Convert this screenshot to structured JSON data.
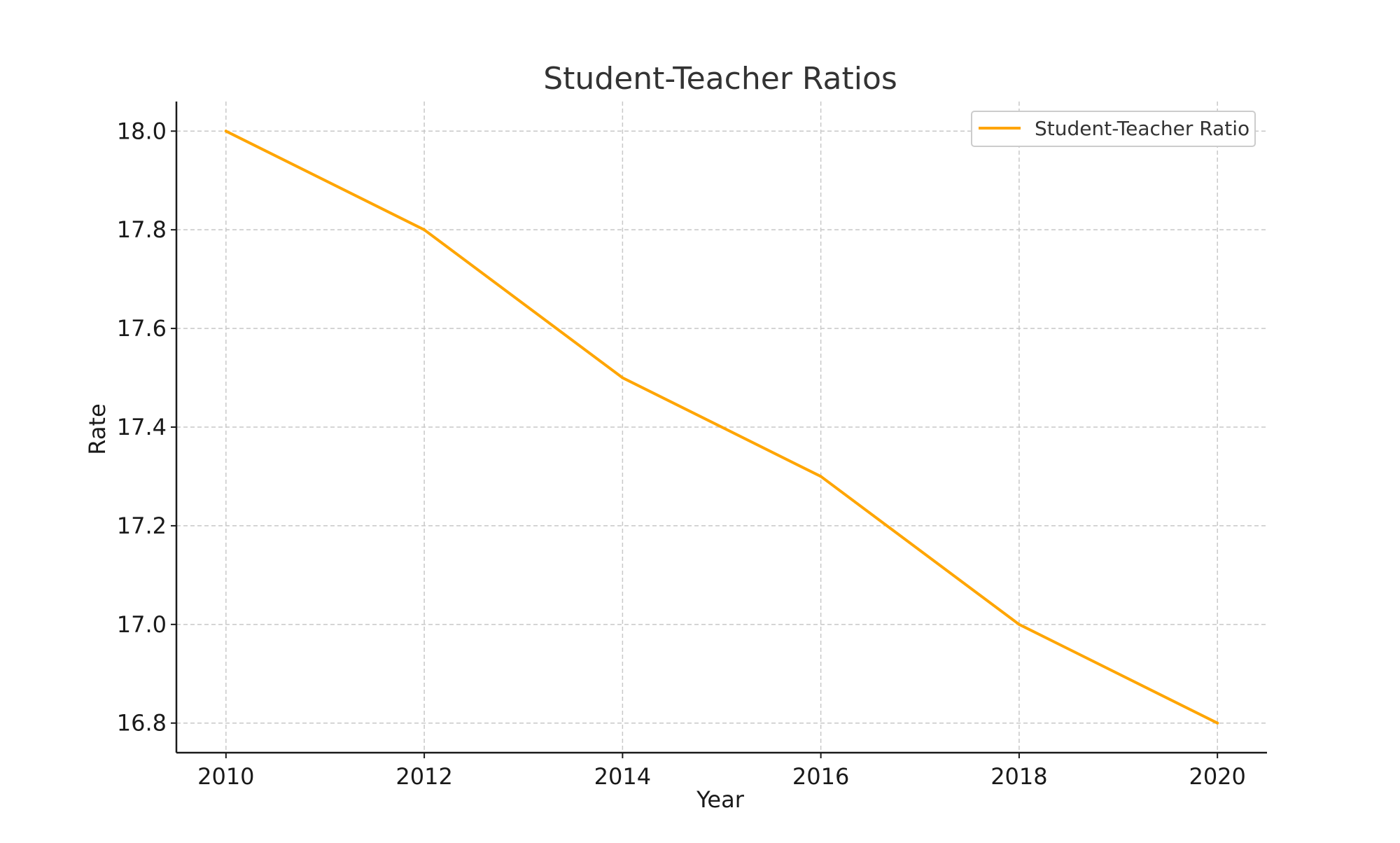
{
  "chart_data": {
    "type": "line",
    "title": "Student-Teacher Ratios",
    "xlabel": "Year",
    "ylabel": "Rate",
    "x": [
      2010,
      2012,
      2014,
      2016,
      2018,
      2020
    ],
    "xlim": [
      2009.5,
      2020.5
    ],
    "xticks": [
      "2010",
      "2012",
      "2014",
      "2016",
      "2018",
      "2020"
    ],
    "ylim": [
      16.74,
      18.06
    ],
    "yticks": [
      "16.8",
      "17.0",
      "17.2",
      "17.4",
      "17.6",
      "17.8",
      "18.0"
    ],
    "grid": true,
    "legend_position": "top-right",
    "series": [
      {
        "name": "Student-Teacher Ratio",
        "color": "#FFA500",
        "values": [
          18.0,
          17.8,
          17.5,
          17.3,
          17.0,
          16.8
        ]
      }
    ]
  }
}
